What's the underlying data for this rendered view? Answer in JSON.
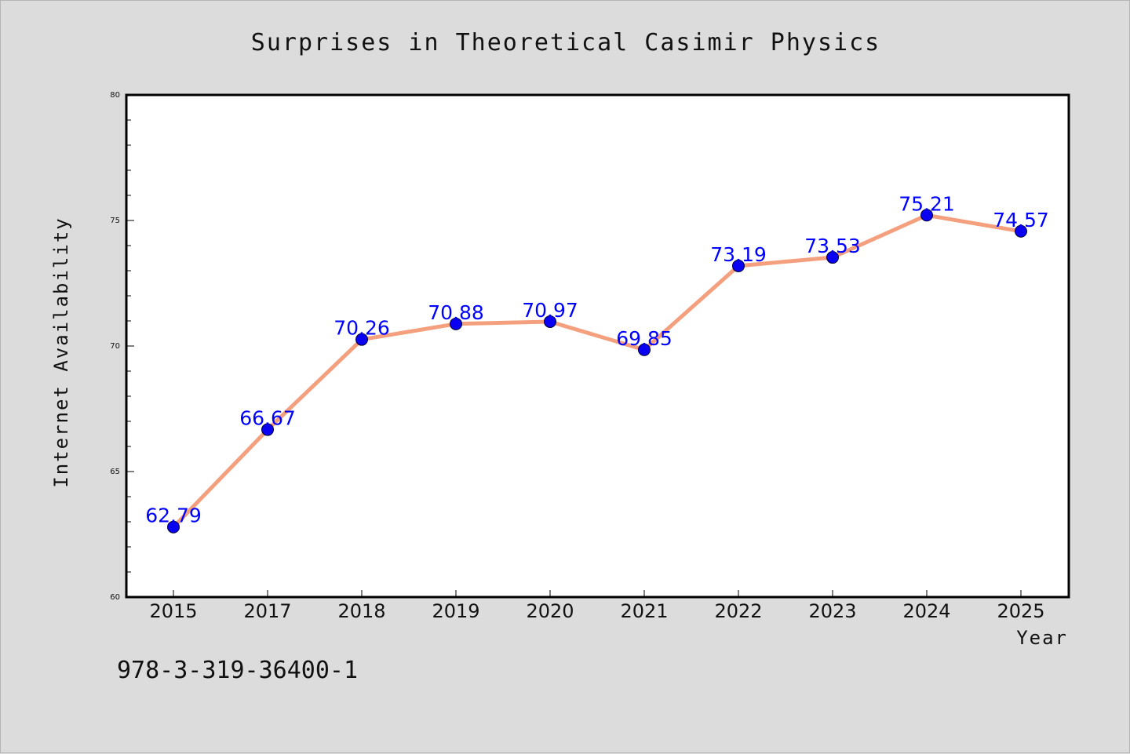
{
  "chart_data": {
    "type": "line",
    "title": "Surprises in Theoretical Casimir Physics",
    "xlabel": "Year",
    "ylabel": "Internet Availability",
    "categories": [
      "2015",
      "2017",
      "2018",
      "2019",
      "2020",
      "2021",
      "2022",
      "2023",
      "2024",
      "2025"
    ],
    "series": [
      {
        "values": [
          62.79,
          66.67,
          70.26,
          70.88,
          70.97,
          69.85,
          73.19,
          73.53,
          75.21,
          74.57
        ],
        "labels": [
          "62.79",
          "66.67",
          "70.26",
          "70.88",
          "70.97",
          "69.85",
          "73.19",
          "73.53",
          "75.21",
          "74.57"
        ],
        "line_color": "#f4a07e",
        "marker_color": "#0a00f2",
        "label_color": "#0000ff"
      }
    ],
    "ylim": [
      60,
      80
    ],
    "y_ticks": [
      60,
      65,
      70,
      75,
      80
    ],
    "y_tick_labels": [
      "60",
      "65",
      "70",
      "75",
      "80"
    ],
    "y_minor_step": 1,
    "grid": false,
    "legend": "none"
  },
  "footer": {
    "code": "978-3-319-36400-1"
  },
  "colors": {
    "background": "#dcdcdc",
    "plot_background": "#ffffff",
    "axes": "#000000"
  }
}
